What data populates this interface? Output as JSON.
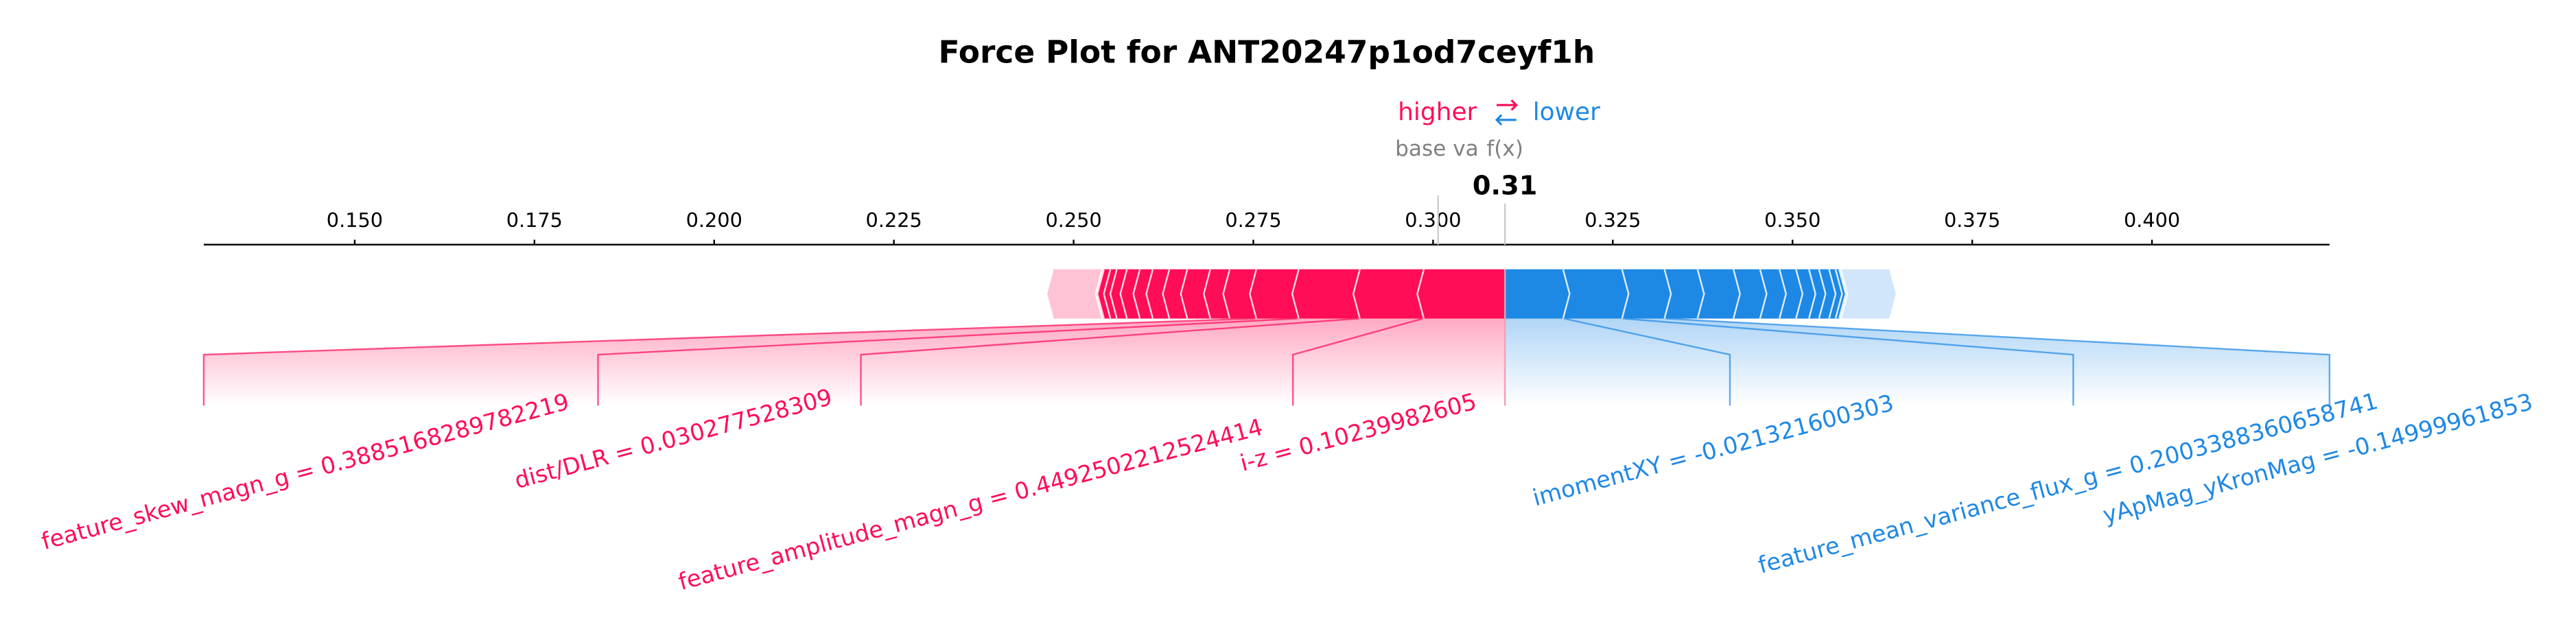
{
  "chart_data": {
    "type": "force",
    "title": "Force Plot for ANT20247p1od7ceyf1h",
    "legend_higher": "higher",
    "legend_lower": "lower",
    "base_value_label": "base va",
    "output_label": "f(x)",
    "base_value": 0.3007,
    "output_value": 0.31,
    "xlim": [
      0.129,
      0.4247
    ],
    "xticks": [
      {
        "value": 0.15,
        "label": "0.150"
      },
      {
        "value": 0.175,
        "label": "0.175"
      },
      {
        "value": 0.2,
        "label": "0.200"
      },
      {
        "value": 0.225,
        "label": "0.225"
      },
      {
        "value": 0.25,
        "label": "0.250"
      },
      {
        "value": 0.275,
        "label": "0.275"
      },
      {
        "value": 0.3,
        "label": "0.300"
      },
      {
        "value": 0.325,
        "label": "0.325"
      },
      {
        "value": 0.35,
        "label": "0.350"
      },
      {
        "value": 0.375,
        "label": "0.375"
      },
      {
        "value": 0.4,
        "label": "0.400"
      }
    ],
    "positive": {
      "color": "#ff0d57",
      "labels": [
        "i-z = 0.10239982605",
        "feature_amplitude_magn_g = 0.4492502212524414",
        "dist/DLR = 0.030277528309",
        "feature_skew_magn_g = 0.3885168289782219",
        null,
        null,
        null,
        null,
        null,
        null,
        null,
        null,
        null,
        null
      ],
      "values": [
        0.0114,
        0.0089,
        0.0085,
        0.0059,
        0.0037,
        0.0027,
        0.0032,
        0.0025,
        0.0023,
        0.0018,
        0.0018,
        0.0014,
        0.0009,
        0.0009
      ]
    },
    "negative": {
      "color": "#1e88e5",
      "labels": [
        "imomentXY = -0.021321600303",
        "feature_mean_variance_flux_g = 0.2003388360658741",
        "yApMag_yKronMag = -0.14999961853",
        null,
        null,
        null,
        null,
        null,
        null,
        null,
        null,
        null,
        null
      ],
      "values": [
        0.0082,
        0.0082,
        0.0059,
        0.0046,
        0.005,
        0.0037,
        0.0027,
        0.0023,
        0.0018,
        0.0014,
        0.0014,
        0.0009,
        0.0005
      ]
    }
  }
}
